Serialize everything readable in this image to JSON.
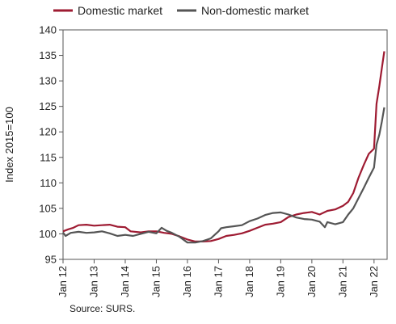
{
  "chart_data": {
    "type": "line",
    "ylabel": "Index 2015=100",
    "ylim": [
      95,
      140
    ],
    "yticks": [
      95,
      100,
      105,
      110,
      115,
      120,
      125,
      130,
      135,
      140
    ],
    "xlim": [
      2012.0,
      2022.42
    ],
    "xticks": [
      {
        "value": 2012,
        "label": "Jan 12"
      },
      {
        "value": 2013,
        "label": "Jan 13"
      },
      {
        "value": 2014,
        "label": "Jan 14"
      },
      {
        "value": 2015,
        "label": "Jan 15"
      },
      {
        "value": 2016,
        "label": "Jan 16"
      },
      {
        "value": 2017,
        "label": "Jan 17"
      },
      {
        "value": 2018,
        "label": "Jan 18"
      },
      {
        "value": 2019,
        "label": "Jan 19"
      },
      {
        "value": 2020,
        "label": "Jan 20"
      },
      {
        "value": 2021,
        "label": "Jan 21"
      },
      {
        "value": 2022,
        "label": "Jan 22"
      }
    ],
    "grid": false,
    "legend": "top",
    "series": [
      {
        "name": "Domestic market",
        "color": "#9e1b32",
        "points": [
          [
            2012.0,
            100.5
          ],
          [
            2012.17,
            100.9
          ],
          [
            2012.33,
            101.2
          ],
          [
            2012.5,
            101.7
          ],
          [
            2012.75,
            101.8
          ],
          [
            2013.0,
            101.6
          ],
          [
            2013.25,
            101.7
          ],
          [
            2013.5,
            101.8
          ],
          [
            2013.75,
            101.4
          ],
          [
            2014.0,
            101.3
          ],
          [
            2014.17,
            100.5
          ],
          [
            2014.5,
            100.3
          ],
          [
            2014.75,
            100.5
          ],
          [
            2015.0,
            100.5
          ],
          [
            2015.25,
            100.2
          ],
          [
            2015.5,
            100.0
          ],
          [
            2015.75,
            99.5
          ],
          [
            2016.0,
            98.9
          ],
          [
            2016.25,
            98.5
          ],
          [
            2016.5,
            98.5
          ],
          [
            2016.75,
            98.6
          ],
          [
            2017.0,
            99.0
          ],
          [
            2017.25,
            99.6
          ],
          [
            2017.5,
            99.8
          ],
          [
            2017.75,
            100.1
          ],
          [
            2018.0,
            100.6
          ],
          [
            2018.25,
            101.2
          ],
          [
            2018.5,
            101.8
          ],
          [
            2018.75,
            102.0
          ],
          [
            2019.0,
            102.3
          ],
          [
            2019.25,
            103.3
          ],
          [
            2019.5,
            103.8
          ],
          [
            2019.75,
            104.1
          ],
          [
            2020.0,
            104.3
          ],
          [
            2020.25,
            103.8
          ],
          [
            2020.5,
            104.5
          ],
          [
            2020.75,
            104.8
          ],
          [
            2021.0,
            105.5
          ],
          [
            2021.17,
            106.3
          ],
          [
            2021.33,
            108.0
          ],
          [
            2021.5,
            111.0
          ],
          [
            2021.67,
            113.5
          ],
          [
            2021.83,
            115.7
          ],
          [
            2022.0,
            116.7
          ],
          [
            2022.08,
            125.5
          ],
          [
            2022.17,
            129.0
          ],
          [
            2022.25,
            132.5
          ],
          [
            2022.33,
            135.8
          ]
        ]
      },
      {
        "name": "Non-domestic market",
        "color": "#555555",
        "points": [
          [
            2012.0,
            100.3
          ],
          [
            2012.08,
            99.6
          ],
          [
            2012.25,
            100.2
          ],
          [
            2012.5,
            100.4
          ],
          [
            2012.75,
            100.2
          ],
          [
            2013.0,
            100.3
          ],
          [
            2013.25,
            100.5
          ],
          [
            2013.5,
            100.1
          ],
          [
            2013.75,
            99.6
          ],
          [
            2014.0,
            99.8
          ],
          [
            2014.25,
            99.6
          ],
          [
            2014.5,
            100.0
          ],
          [
            2014.75,
            100.4
          ],
          [
            2015.0,
            100.1
          ],
          [
            2015.17,
            101.2
          ],
          [
            2015.33,
            100.6
          ],
          [
            2015.5,
            100.2
          ],
          [
            2015.75,
            99.4
          ],
          [
            2016.0,
            98.3
          ],
          [
            2016.25,
            98.3
          ],
          [
            2016.5,
            98.6
          ],
          [
            2016.75,
            99.1
          ],
          [
            2017.0,
            100.5
          ],
          [
            2017.08,
            101.1
          ],
          [
            2017.25,
            101.3
          ],
          [
            2017.5,
            101.5
          ],
          [
            2017.75,
            101.7
          ],
          [
            2018.0,
            102.5
          ],
          [
            2018.25,
            103.0
          ],
          [
            2018.5,
            103.7
          ],
          [
            2018.75,
            104.1
          ],
          [
            2019.0,
            104.2
          ],
          [
            2019.25,
            103.8
          ],
          [
            2019.5,
            103.2
          ],
          [
            2019.75,
            102.9
          ],
          [
            2020.0,
            102.8
          ],
          [
            2020.25,
            102.4
          ],
          [
            2020.42,
            101.3
          ],
          [
            2020.5,
            102.3
          ],
          [
            2020.75,
            101.9
          ],
          [
            2021.0,
            102.3
          ],
          [
            2021.17,
            103.8
          ],
          [
            2021.33,
            105.0
          ],
          [
            2021.5,
            107.0
          ],
          [
            2021.67,
            109.0
          ],
          [
            2021.83,
            111.0
          ],
          [
            2022.0,
            113.0
          ],
          [
            2022.08,
            117.5
          ],
          [
            2022.17,
            119.5
          ],
          [
            2022.25,
            122.0
          ],
          [
            2022.33,
            124.8
          ]
        ]
      }
    ]
  },
  "source": "Source: SURS."
}
